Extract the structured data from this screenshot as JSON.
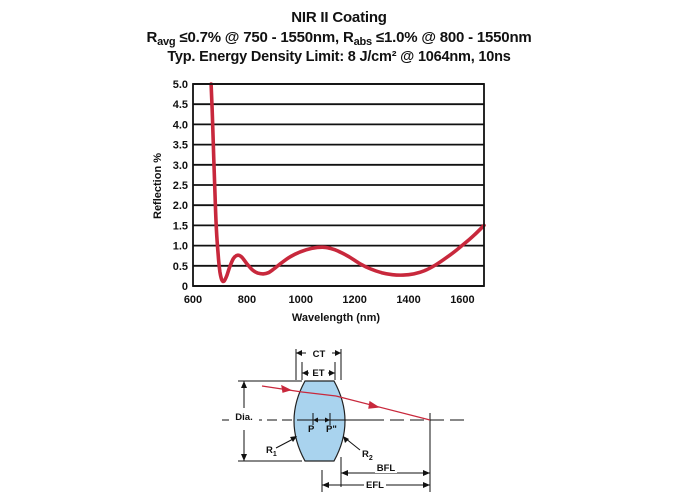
{
  "title": {
    "line1": "NIR II Coating",
    "line2_parts": [
      "R",
      "avg",
      " ≤0.7% @ 750 - 1550nm, R",
      "abs",
      " ≤1.0% @ 800 - 1550nm"
    ],
    "line3": "Typ. Energy Density Limit: 8 J/cm² @ 1064nm, 10ns"
  },
  "chart_data": {
    "type": "line",
    "title": "NIR II Coating",
    "xlabel": "Wavelength (nm)",
    "ylabel": "Reflection %",
    "xlim": [
      600,
      1680
    ],
    "ylim": [
      0,
      5.0
    ],
    "xticks": [
      "600",
      "800",
      "1000",
      "1200",
      "1400",
      "1600"
    ],
    "yticks": [
      "0",
      "0.5",
      "1.0",
      "1.5",
      "2.0",
      "2.5",
      "3.0",
      "3.5",
      "4.0",
      "4.5",
      "5.0"
    ],
    "grid": true,
    "series": [
      {
        "name": "Reflection",
        "color": "#c8283c",
        "x": [
          667,
          672,
          677,
          682,
          687,
          693,
          700,
          707,
          715,
          725,
          735,
          750,
          765,
          780,
          800,
          820,
          840,
          860,
          880,
          900,
          930,
          960,
          1000,
          1040,
          1080,
          1110,
          1140,
          1180,
          1220,
          1260,
          1300,
          1340,
          1380,
          1420,
          1460,
          1500,
          1540,
          1580,
          1620,
          1650,
          1680
        ],
        "y": [
          5.0,
          4.2,
          3.2,
          2.2,
          1.4,
          0.8,
          0.35,
          0.15,
          0.12,
          0.25,
          0.45,
          0.68,
          0.76,
          0.72,
          0.55,
          0.4,
          0.32,
          0.3,
          0.33,
          0.42,
          0.58,
          0.72,
          0.85,
          0.93,
          0.96,
          0.93,
          0.86,
          0.72,
          0.55,
          0.42,
          0.33,
          0.28,
          0.27,
          0.3,
          0.38,
          0.52,
          0.7,
          0.9,
          1.12,
          1.3,
          1.5
        ]
      }
    ]
  },
  "diagram": {
    "ct": "CT",
    "et": "ET",
    "dia": "Dia.",
    "p": "P",
    "p_prime": "P\"",
    "r1": "R",
    "r1_sub": "1",
    "r2": "R",
    "r2_sub": "2",
    "bfl": "BFL",
    "efl": "EFL",
    "lens_color": "#a9d3ee",
    "ray_color": "#c8283c"
  }
}
